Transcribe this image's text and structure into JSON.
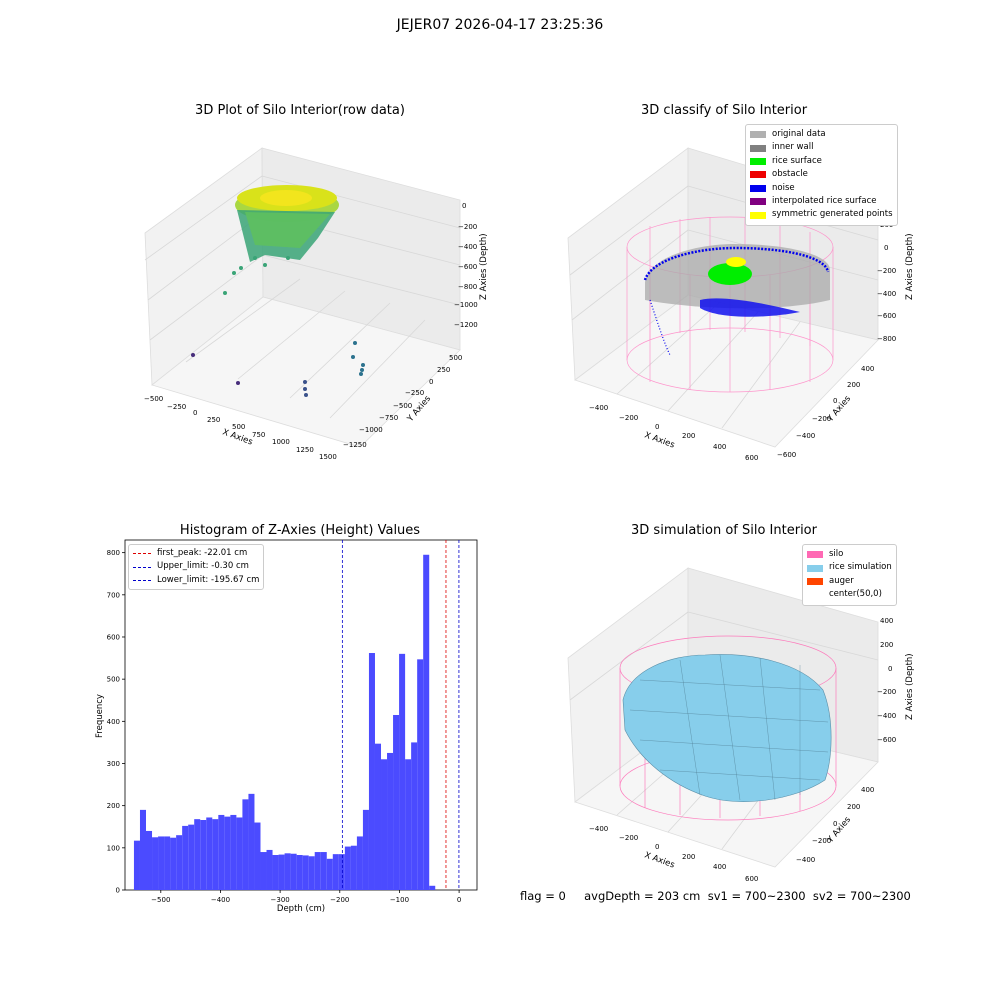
{
  "suptitle": "JEJER07 2026-04-17 23:25:36",
  "footer": "flag = 0     avgDepth = 203 cm  sv1 = 700~2300  sv2 = 700~2300",
  "panels": {
    "raw": {
      "title": "3D Plot of Silo Interior(row data)",
      "xlabel": "X Axies",
      "ylabel": "Y Axies",
      "zlabel": "Z Axies (Depth)",
      "xticks": [
        "−500",
        "−250",
        "0",
        "250",
        "500",
        "750",
        "1000",
        "1250",
        "1500"
      ],
      "yticks": [
        "500",
        "250",
        "0",
        "−250",
        "−500",
        "−750",
        "−1000",
        "−1250"
      ],
      "zticks": [
        "0",
        "−200",
        "−400",
        "−600",
        "−800",
        "−1000",
        "−1200"
      ]
    },
    "classify": {
      "title": "3D classify of Silo Interior",
      "xlabel": "X Axies",
      "ylabel": "Y Axies",
      "zlabel": "Z Axies (Depth)",
      "xticks": [
        "−400",
        "−200",
        "0",
        "200",
        "400",
        "600"
      ],
      "yticks": [
        "400",
        "200",
        "0",
        "−200",
        "−400",
        "−600"
      ],
      "zticks": [
        "200",
        "0",
        "−200",
        "−400",
        "−600",
        "−800"
      ],
      "legend": [
        {
          "label": "original data",
          "color": "#b0b0b0"
        },
        {
          "label": "inner wall",
          "color": "#808080"
        },
        {
          "label": "rice surface",
          "color": "#00ee00"
        },
        {
          "label": "obstacle",
          "color": "#ee0000"
        },
        {
          "label": "noise",
          "color": "#0000ee"
        },
        {
          "label": "interpolated rice surface",
          "color": "#800080"
        },
        {
          "label": "symmetric generated points",
          "color": "#ffff00"
        }
      ]
    },
    "simulation": {
      "title": "3D simulation of Silo Interior",
      "xlabel": "X Axies",
      "ylabel": "Y Axies",
      "zlabel": "Z Axies (Depth)",
      "xticks": [
        "−400",
        "−200",
        "0",
        "200",
        "400",
        "600"
      ],
      "yticks": [
        "400",
        "200",
        "0",
        "−200",
        "−400"
      ],
      "zticks": [
        "400",
        "200",
        "0",
        "−200",
        "−400",
        "−600"
      ],
      "legend": [
        {
          "label": "silo",
          "color": "#ff69b4"
        },
        {
          "label": "rice simulation",
          "color": "#87ceeb"
        },
        {
          "label": "auger",
          "color": "#ff4500"
        },
        {
          "label": "center(50,0)",
          "color": "#ffffff"
        }
      ]
    }
  },
  "chart_data": {
    "type": "bar",
    "title": "Histogram of Z-Axies (Height) Values",
    "xlabel": "Depth (cm)",
    "ylabel": "Frequency",
    "xlim": [
      -560,
      30
    ],
    "ylim": [
      0,
      830
    ],
    "xticks": [
      -500,
      -400,
      -300,
      -200,
      -100,
      0
    ],
    "xtick_labels": [
      "−500",
      "−400",
      "−300",
      "−200",
      "−100",
      "0"
    ],
    "yticks": [
      0,
      100,
      200,
      300,
      400,
      500,
      600,
      700,
      800
    ],
    "bar_color": "#4b4bff",
    "bin_edges_start": -545,
    "bin_width": 10.1,
    "values": [
      117,
      190,
      140,
      125,
      127,
      127,
      124,
      130,
      152,
      155,
      168,
      166,
      172,
      168,
      178,
      174,
      178,
      172,
      215,
      228,
      160,
      90,
      95,
      83,
      84,
      87,
      86,
      83,
      82,
      80,
      90,
      90,
      74,
      85,
      85,
      103,
      105,
      127,
      190,
      562,
      347,
      310,
      325,
      415,
      560,
      310,
      350,
      547,
      795,
      10
    ],
    "lines": [
      {
        "label": "first_peak: -22.01 cm",
        "x": -22.01,
        "color": "#dd0000"
      },
      {
        "label": "Upper_limit: -0.30 cm",
        "x": -0.3,
        "color": "#0000cc"
      },
      {
        "label": "Lower_limit: -195.67 cm",
        "x": -195.67,
        "color": "#0000cc"
      }
    ]
  }
}
